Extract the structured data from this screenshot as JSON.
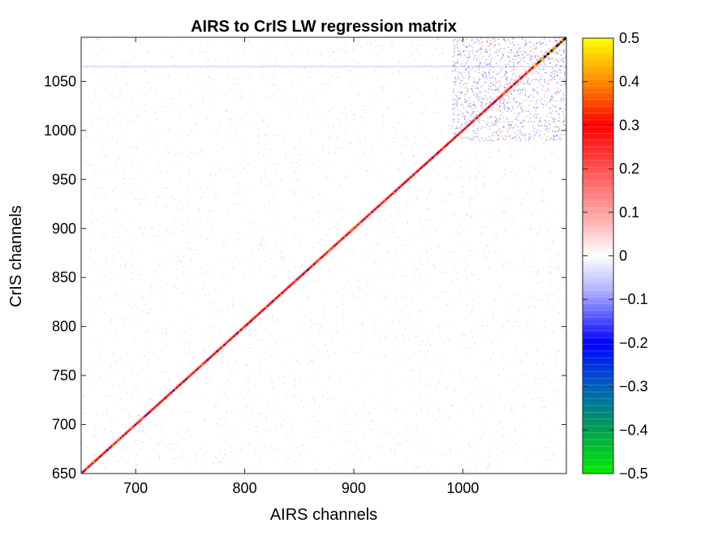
{
  "chart_data": {
    "type": "heatmap",
    "title": "AIRS to CrIS LW regression matrix",
    "xlabel": "AIRS channels",
    "ylabel": "CrIS channels",
    "xlim": [
      650,
      1095
    ],
    "ylim": [
      650,
      1095
    ],
    "xticks": [
      700,
      800,
      900,
      1000
    ],
    "yticks": [
      650,
      700,
      750,
      800,
      850,
      900,
      950,
      1000,
      1050
    ],
    "colorbar": {
      "clim": [
        -0.5,
        0.5
      ],
      "ticks": [
        0.5,
        0.4,
        0.3,
        0.2,
        0.1,
        0,
        -0.1,
        -0.2,
        -0.3,
        -0.4,
        -0.5
      ],
      "tick_labels": [
        "0.5",
        "0.4",
        "0.3",
        "0.2",
        "0.1",
        "0",
        "−0.1",
        "−0.2",
        "−0.3",
        "−0.4",
        "−0.5"
      ],
      "colors": [
        "#00ee00",
        "#00a050",
        "#0000ff",
        "#ffffff",
        "#ff0000",
        "#ff9900",
        "#ffff00"
      ]
    },
    "pattern": "Strong positive diagonal (red, ~0.2-0.3) from (650,650) to (1095,1095); faint blue/white noise elsewhere; denser off-diagonal structure near 1000-1095"
  }
}
